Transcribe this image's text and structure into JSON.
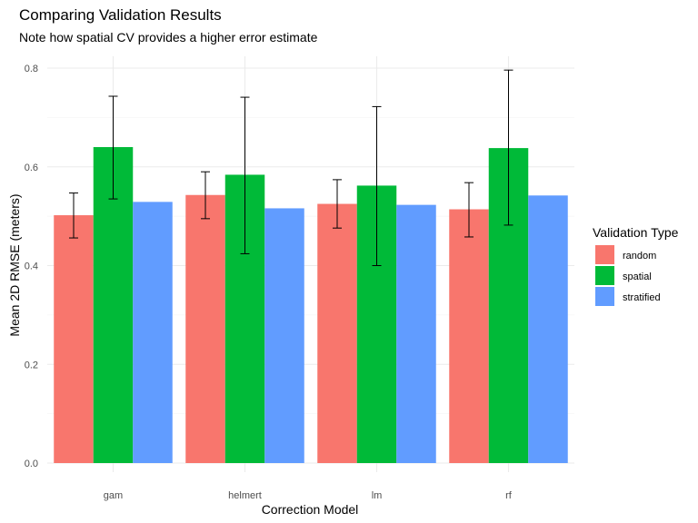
{
  "chart_data": {
    "type": "bar",
    "title": "Comparing Validation Results",
    "subtitle": "Note how spatial CV provides a higher error estimate",
    "xlabel": "Correction Model",
    "ylabel": "Mean 2D RMSE (meters)",
    "categories": [
      "gam",
      "helmert",
      "lm",
      "rf"
    ],
    "ylim": [
      0,
      0.8
    ],
    "yticks": [
      0.0,
      0.2,
      0.4,
      0.6,
      0.8
    ],
    "ytick_labels": [
      "0.0",
      "0.2",
      "0.4",
      "0.6",
      "0.8"
    ],
    "grid": true,
    "legend": {
      "title": "Validation Type",
      "position": "right"
    },
    "series": [
      {
        "name": "random",
        "color": "#F8766D",
        "values": [
          0.502,
          0.543,
          0.525,
          0.514
        ],
        "error_low": [
          0.456,
          0.495,
          0.476,
          0.458
        ],
        "error_high": [
          0.547,
          0.59,
          0.574,
          0.568
        ]
      },
      {
        "name": "spatial",
        "color": "#00BA38",
        "values": [
          0.64,
          0.584,
          0.562,
          0.638
        ],
        "error_low": [
          0.535,
          0.424,
          0.4,
          0.482
        ],
        "error_high": [
          0.743,
          0.741,
          0.722,
          0.796
        ]
      },
      {
        "name": "stratified",
        "color": "#619CFF",
        "values": [
          0.529,
          0.516,
          0.523,
          0.542
        ],
        "error_low": null,
        "error_high": null
      }
    ]
  }
}
